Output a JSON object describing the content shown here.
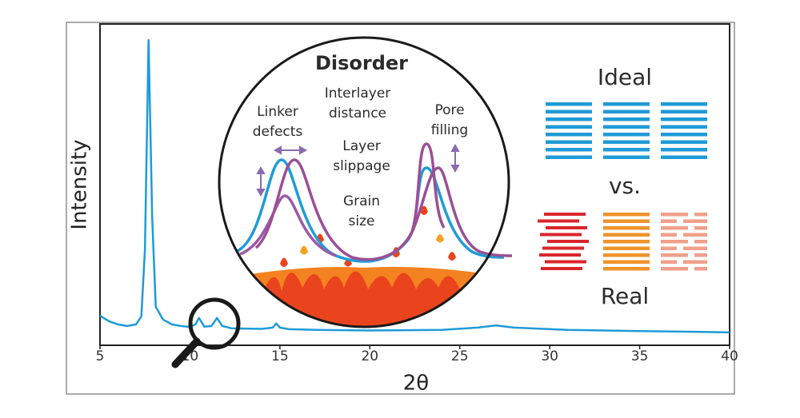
{
  "chart_data": {
    "type": "line",
    "xlabel": "2θ",
    "ylabel": "Intensity",
    "xlim": [
      5,
      40
    ],
    "xticks": [
      5,
      10,
      15,
      20,
      25,
      30,
      35,
      40
    ],
    "ylim": [
      0,
      100
    ],
    "color": "#1f9bd7",
    "x": [
      5,
      5.5,
      6,
      6.5,
      7,
      7.3,
      7.5,
      7.7,
      7.9,
      8.1,
      8.5,
      9,
      9.5,
      10,
      10.3,
      10.5,
      10.8,
      11.2,
      11.5,
      11.8,
      12.3,
      13,
      14,
      14.6,
      14.8,
      15,
      15.5,
      17,
      20,
      24,
      26,
      27,
      28,
      31,
      35,
      38,
      40
    ],
    "values": [
      9.2,
      7.5,
      6.5,
      6,
      6.5,
      9,
      30,
      95,
      40,
      12,
      8,
      6.5,
      6,
      5.7,
      6.5,
      8.5,
      5.8,
      6,
      8.5,
      6,
      5.3,
      5.2,
      5.1,
      5.5,
      6.8,
      5.5,
      5,
      4.8,
      4.6,
      4.8,
      5.5,
      6.2,
      5.5,
      4.8,
      4.4,
      4.2,
      4
    ],
    "annotations": {
      "disorder": "Disorder",
      "interlayer": [
        "Interlayer",
        "distance"
      ],
      "linker": [
        "Linker",
        "defects"
      ],
      "slippage": [
        "Layer",
        "slippage"
      ],
      "grain": [
        "Grain",
        "size"
      ],
      "pore": [
        "Pore",
        "filling"
      ],
      "ideal": "Ideal",
      "vs": "vs.",
      "real": "Real"
    }
  }
}
